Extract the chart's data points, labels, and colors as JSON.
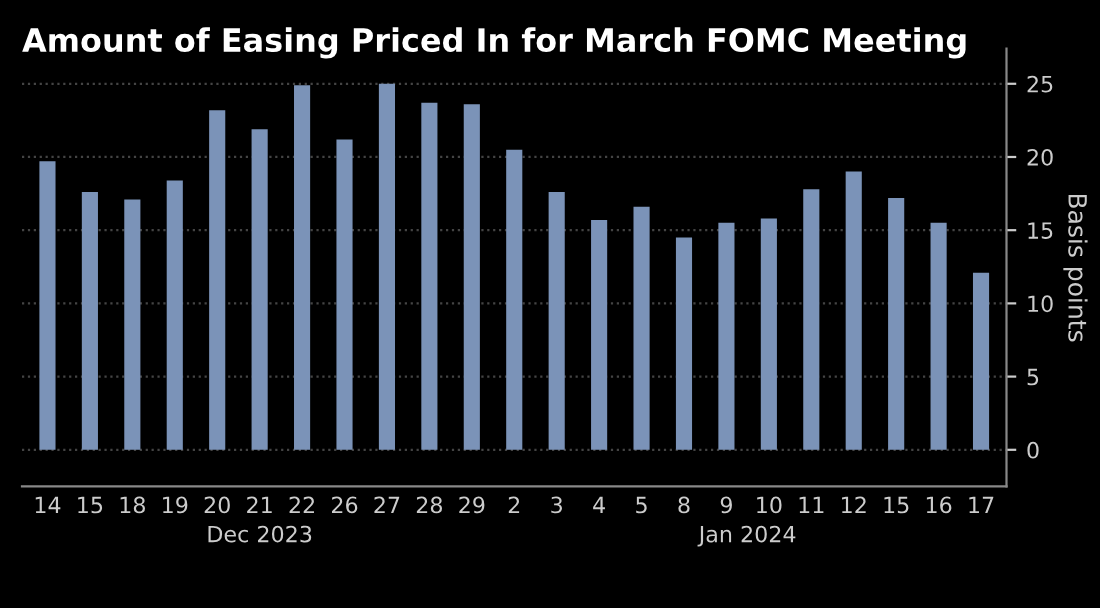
{
  "chart_data": {
    "type": "bar",
    "title": "Amount of Easing Priced In for March FOMC Meeting",
    "ylabel": "Basis points",
    "categories": [
      "14",
      "15",
      "18",
      "19",
      "20",
      "21",
      "22",
      "26",
      "27",
      "28",
      "29",
      "2",
      "3",
      "4",
      "5",
      "8",
      "9",
      "10",
      "11",
      "12",
      "15",
      "16",
      "17"
    ],
    "values": [
      19.7,
      17.6,
      17.1,
      18.4,
      23.2,
      21.9,
      24.9,
      21.2,
      25.0,
      23.7,
      23.6,
      20.5,
      17.6,
      15.7,
      16.6,
      14.5,
      15.5,
      15.8,
      17.8,
      19.0,
      17.2,
      15.5,
      12.1
    ],
    "color": "#7b93b8",
    "ylim": [
      -2.5,
      27.4
    ],
    "yticks": [
      0,
      5,
      10,
      15,
      20,
      25
    ],
    "grid": "y",
    "legend": false,
    "annotations": [
      "Dec 2023",
      "Jan 2024"
    ]
  }
}
